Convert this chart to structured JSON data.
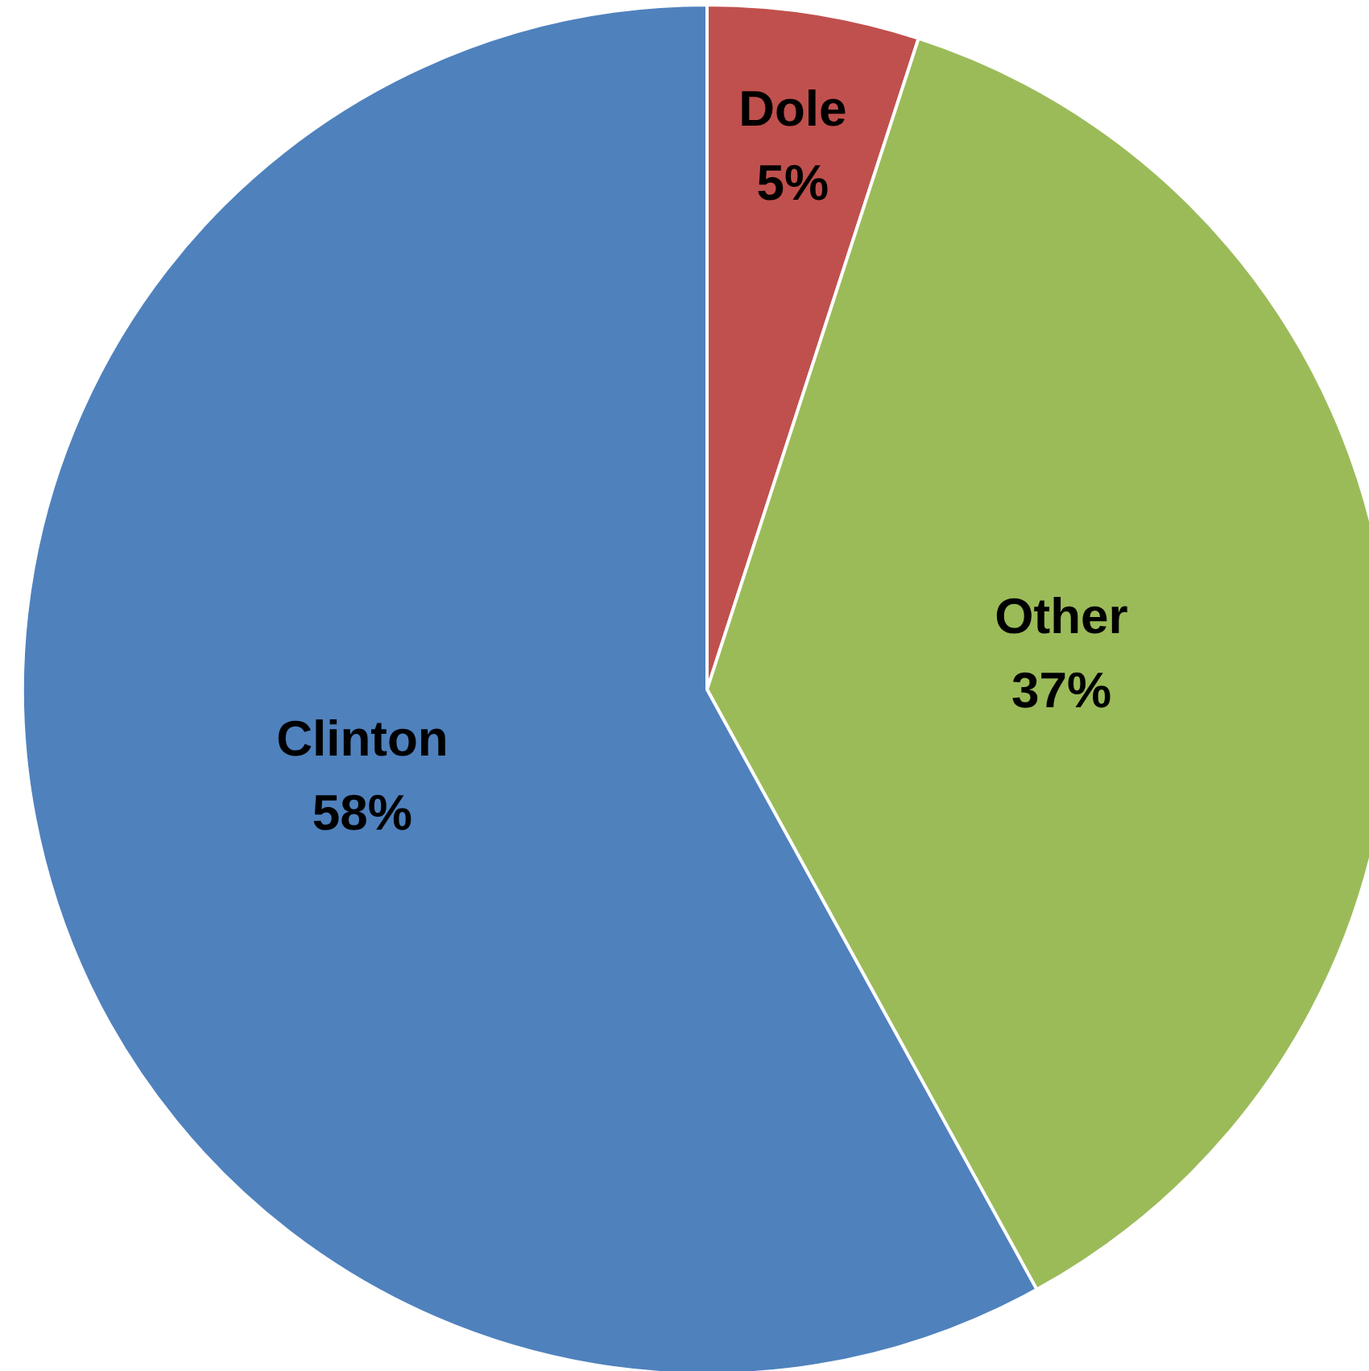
{
  "chart_data": {
    "type": "pie",
    "categories": [
      "Dole",
      "Other",
      "Clinton"
    ],
    "values": [
      5,
      37,
      58
    ],
    "value_labels": [
      "5%",
      "37%",
      "58%"
    ],
    "colors": [
      "#c0504d",
      "#9bbb59",
      "#4f81bd"
    ],
    "legend": false
  }
}
